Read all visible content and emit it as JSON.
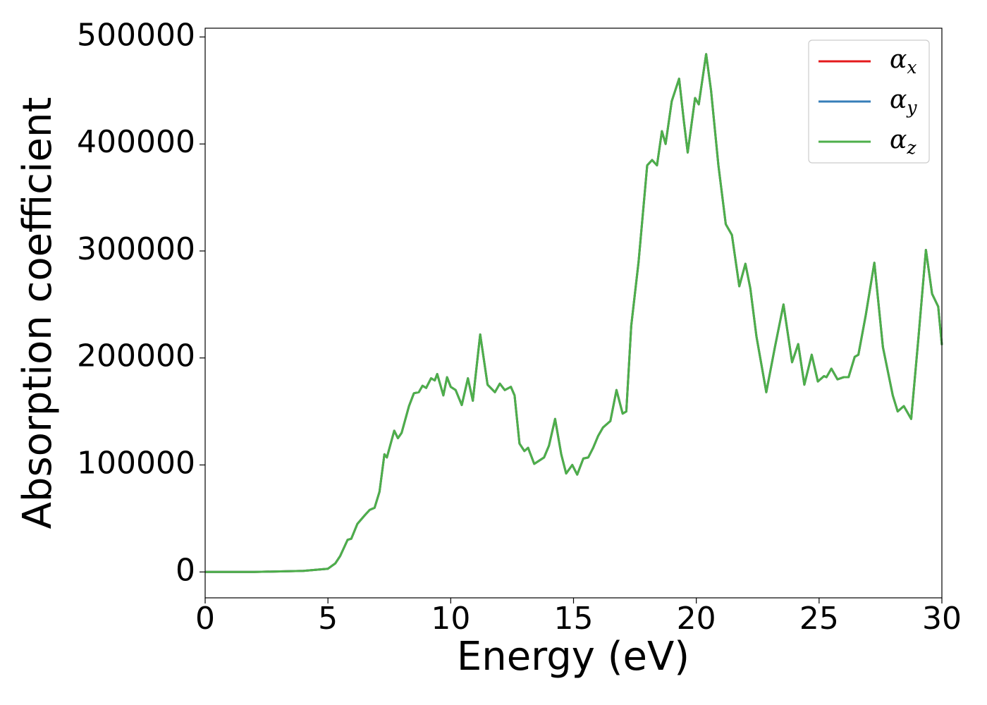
{
  "chart_data": {
    "type": "line",
    "xlabel": "Energy (eV)",
    "ylabel": "Absorption coefficient",
    "x": [
      0,
      2,
      4,
      5,
      5.3,
      5.5,
      5.8,
      5.95,
      6.2,
      6.5,
      6.7,
      6.9,
      7.1,
      7.3,
      7.4,
      7.7,
      7.85,
      8.0,
      8.3,
      8.5,
      8.7,
      8.85,
      9.0,
      9.2,
      9.35,
      9.45,
      9.7,
      9.85,
      10.0,
      10.2,
      10.45,
      10.7,
      10.9,
      11.2,
      11.5,
      11.8,
      12.0,
      12.2,
      12.45,
      12.6,
      12.8,
      13.0,
      13.15,
      13.4,
      13.6,
      13.8,
      14.0,
      14.25,
      14.5,
      14.7,
      14.95,
      15.15,
      15.4,
      15.6,
      15.8,
      16.0,
      16.2,
      16.5,
      16.75,
      17.0,
      17.15,
      17.35,
      17.65,
      18.0,
      18.2,
      18.4,
      18.6,
      18.75,
      19.0,
      19.3,
      19.5,
      19.65,
      19.95,
      20.1,
      20.4,
      20.6,
      20.9,
      21.2,
      21.45,
      21.75,
      22.0,
      22.2,
      22.45,
      22.85,
      23.2,
      23.55,
      23.9,
      24.15,
      24.4,
      24.7,
      24.95,
      25.2,
      25.3,
      25.5,
      25.75,
      26.0,
      26.2,
      26.45,
      26.6,
      26.9,
      27.25,
      27.6,
      28.0,
      28.2,
      28.45,
      28.75,
      29.05,
      29.35,
      29.6,
      29.85,
      30
    ],
    "series": [
      {
        "name": "αx",
        "color": "#e41a1c",
        "values": [
          0,
          0,
          1000,
          3000,
          8000,
          15000,
          30000,
          31000,
          45000,
          53000,
          58000,
          60000,
          75000,
          110000,
          107000,
          132000,
          125000,
          130000,
          155000,
          167000,
          168000,
          174000,
          172000,
          181000,
          179000,
          185000,
          165000,
          182000,
          173000,
          170000,
          156000,
          181000,
          160000,
          222000,
          175000,
          168000,
          176000,
          170000,
          173000,
          165000,
          120000,
          113000,
          116000,
          101000,
          104000,
          107000,
          118000,
          143000,
          110000,
          92000,
          100000,
          91000,
          106000,
          107000,
          116000,
          127000,
          135000,
          141000,
          170000,
          148000,
          150000,
          230000,
          290000,
          380000,
          385000,
          380000,
          412000,
          400000,
          440000,
          461000,
          420000,
          392000,
          443000,
          437000,
          484000,
          450000,
          380000,
          325000,
          315000,
          267000,
          288000,
          265000,
          220000,
          168000,
          210000,
          250000,
          196000,
          213000,
          175000,
          203000,
          178000,
          183000,
          182000,
          190000,
          180000,
          182000,
          182000,
          201000,
          203000,
          240000,
          289000,
          210000,
          165000,
          150000,
          155000,
          143000,
          220000,
          301000,
          260000,
          248000,
          212000
        ]
      },
      {
        "name": "αy",
        "color": "#377eb8",
        "values": [
          0,
          0,
          1000,
          3000,
          8000,
          15000,
          30000,
          31000,
          45000,
          53000,
          58000,
          60000,
          75000,
          110000,
          107000,
          132000,
          125000,
          130000,
          155000,
          167000,
          168000,
          174000,
          172000,
          181000,
          179000,
          185000,
          165000,
          182000,
          173000,
          170000,
          156000,
          181000,
          160000,
          222000,
          175000,
          168000,
          176000,
          170000,
          173000,
          165000,
          120000,
          113000,
          116000,
          101000,
          104000,
          107000,
          118000,
          143000,
          110000,
          92000,
          100000,
          91000,
          106000,
          107000,
          116000,
          127000,
          135000,
          141000,
          170000,
          148000,
          150000,
          230000,
          290000,
          380000,
          385000,
          380000,
          412000,
          400000,
          440000,
          461000,
          420000,
          392000,
          443000,
          437000,
          484000,
          450000,
          380000,
          325000,
          315000,
          267000,
          288000,
          265000,
          220000,
          168000,
          210000,
          250000,
          196000,
          213000,
          175000,
          203000,
          178000,
          183000,
          182000,
          190000,
          180000,
          182000,
          182000,
          201000,
          203000,
          240000,
          289000,
          210000,
          165000,
          150000,
          155000,
          143000,
          220000,
          301000,
          260000,
          248000,
          212000
        ]
      },
      {
        "name": "αz",
        "color": "#4daf4a",
        "values": [
          0,
          0,
          1000,
          3000,
          8000,
          15000,
          30000,
          31000,
          45000,
          53000,
          58000,
          60000,
          75000,
          110000,
          107000,
          132000,
          125000,
          130000,
          155000,
          167000,
          168000,
          174000,
          172000,
          181000,
          179000,
          185000,
          165000,
          182000,
          173000,
          170000,
          156000,
          181000,
          160000,
          222000,
          175000,
          168000,
          176000,
          170000,
          173000,
          165000,
          120000,
          113000,
          116000,
          101000,
          104000,
          107000,
          118000,
          143000,
          110000,
          92000,
          100000,
          91000,
          106000,
          107000,
          116000,
          127000,
          135000,
          141000,
          170000,
          148000,
          150000,
          230000,
          290000,
          380000,
          385000,
          380000,
          412000,
          400000,
          440000,
          461000,
          420000,
          392000,
          443000,
          437000,
          484000,
          450000,
          380000,
          325000,
          315000,
          267000,
          288000,
          265000,
          220000,
          168000,
          210000,
          250000,
          196000,
          213000,
          175000,
          203000,
          178000,
          183000,
          182000,
          190000,
          180000,
          182000,
          182000,
          201000,
          203000,
          240000,
          289000,
          210000,
          165000,
          150000,
          155000,
          143000,
          220000,
          301000,
          260000,
          248000,
          212000
        ]
      }
    ],
    "xlim": [
      0,
      30
    ],
    "xticks": [
      0,
      5,
      10,
      15,
      20,
      25,
      30
    ],
    "ylim": [
      -24200,
      508200
    ],
    "yticks": [
      0,
      100000,
      200000,
      300000,
      400000,
      500000
    ],
    "legend": "upper right",
    "grid": false
  }
}
